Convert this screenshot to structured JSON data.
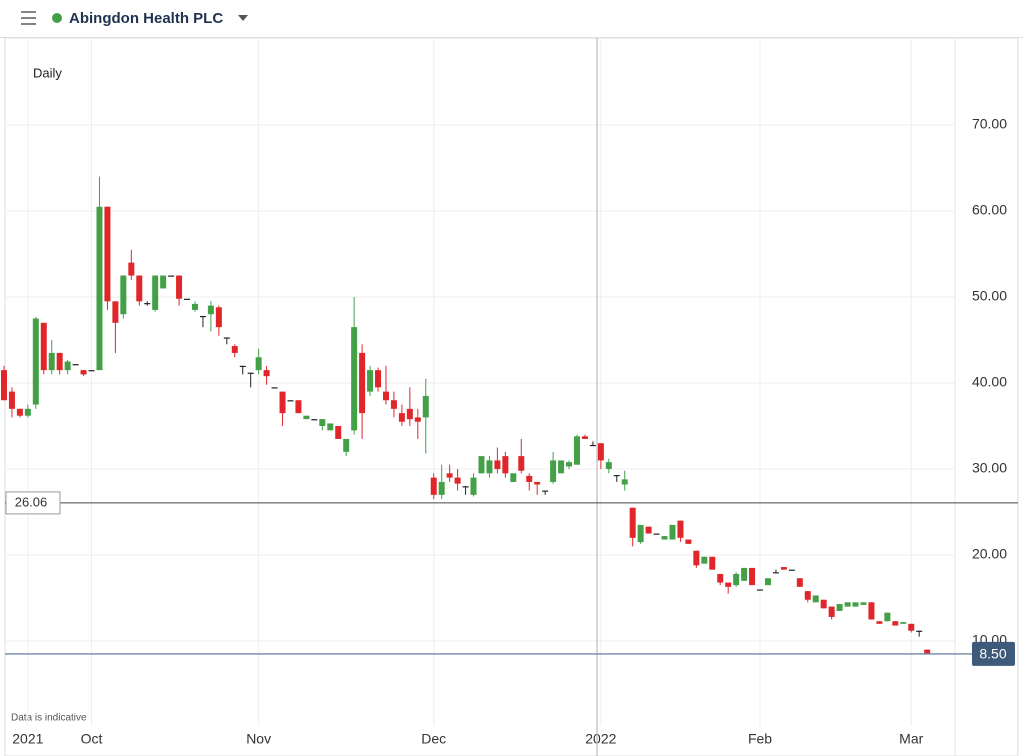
{
  "chart_data": {
    "type": "candlestick",
    "title": "Abingdon Health PLC",
    "interval": "Daily",
    "note": "Data is indicative",
    "ylim": [
      -2.44,
      80.12
    ],
    "yticks": [
      {
        "value": 10,
        "label": "10.00"
      },
      {
        "value": 20,
        "label": "20.00"
      },
      {
        "value": 30,
        "label": "30.00"
      },
      {
        "value": 40,
        "label": "40.00"
      },
      {
        "value": 50,
        "label": "50.00"
      },
      {
        "value": 60,
        "label": "60.00"
      },
      {
        "value": 70,
        "label": "70.00"
      }
    ],
    "xlim": [
      -0.5,
      119.5
    ],
    "xticks": [
      {
        "value": 3,
        "label": "2021"
      },
      {
        "value": 11,
        "label": "Oct"
      },
      {
        "value": 32,
        "label": "Nov"
      },
      {
        "value": 54,
        "label": "Dec"
      },
      {
        "value": 75,
        "label": "2022"
      },
      {
        "value": 95,
        "label": "Feb"
      },
      {
        "value": 114,
        "label": "Mar"
      }
    ],
    "reference_line": 26.06,
    "last_price": {
      "value": 8.5,
      "label": "8.50"
    },
    "up_color": "#43a047",
    "down_color": "#e0262b",
    "open": [
      41.5,
      39,
      37,
      36.2,
      37.5,
      47,
      41.5,
      43.5,
      41.5,
      42.2,
      41.5,
      41.5,
      41.5,
      60.5,
      49.5,
      48,
      54,
      52.5,
      49.3,
      48.5,
      51,
      52.5,
      52.5,
      49.8,
      48.5,
      47.8,
      48,
      48.8,
      45.3,
      44.3,
      42,
      41.2,
      41.5,
      41.5,
      39.5,
      39,
      38,
      38,
      35.8,
      35.8,
      35,
      34.5,
      35,
      32,
      34.5,
      43.5,
      39,
      41.5,
      39,
      38,
      36.5,
      37,
      36,
      36,
      29,
      27,
      29.5,
      29,
      28,
      27,
      29.5,
      29.5,
      31,
      31.5,
      28.5,
      31.5,
      29.2,
      28.5,
      27.5,
      28.5,
      29.5,
      30.3,
      30.5,
      33.8,
      32.8,
      33,
      30,
      29.3,
      28.2,
      25.5,
      21.5,
      23.3,
      22.5,
      21.8,
      21.8,
      24,
      21.8,
      20.5,
      19,
      19.8,
      17.8,
      16.8,
      16.5,
      17,
      18.5,
      16,
      16.5,
      18,
      18.6,
      18.3,
      17.3,
      15.8,
      14.5,
      14.8,
      14,
      13.5,
      14,
      14,
      14.2,
      14.5,
      12.3,
      12.3,
      12.3,
      12,
      12,
      11.2,
      9
    ],
    "high": [
      42,
      39.5,
      37,
      37.5,
      47.7,
      47,
      45,
      43.5,
      42.7,
      42.2,
      41.5,
      41.5,
      64,
      60.5,
      49.5,
      52.5,
      55.5,
      52.5,
      49.5,
      52.5,
      52.5,
      52.5,
      52.5,
      49.8,
      49.5,
      47.8,
      49.5,
      49,
      45.3,
      44.5,
      42,
      41.2,
      44,
      42,
      39.5,
      39,
      38,
      38,
      36.2,
      35.8,
      35.8,
      35.3,
      35,
      33.5,
      50,
      44.5,
      42,
      41.8,
      42,
      39,
      37.5,
      39.5,
      37,
      40.5,
      29.5,
      30.5,
      30.5,
      30,
      28,
      29.5,
      31.5,
      31.5,
      32.5,
      32,
      29.5,
      33.5,
      29.5,
      28.5,
      27.5,
      32,
      31,
      31,
      34,
      34,
      33.2,
      33,
      31.2,
      29.3,
      29.8,
      25.5,
      23.5,
      23.3,
      22.5,
      22.2,
      23.5,
      24,
      21.8,
      20.5,
      19.8,
      19.8,
      17.8,
      16.8,
      18,
      18.5,
      18.5,
      16,
      17.3,
      18.3,
      18.6,
      18.3,
      17.3,
      15.8,
      15.3,
      14.8,
      14,
      14.3,
      14.5,
      14.5,
      14.5,
      14.5,
      12.3,
      13.3,
      12.3,
      12.2,
      12,
      11.2,
      9
    ],
    "low": [
      38,
      36,
      36,
      36,
      37,
      41,
      41,
      41,
      41,
      42.2,
      40.8,
      41.5,
      41.5,
      48.5,
      43.5,
      47.5,
      52,
      49,
      49,
      48.3,
      51,
      52.5,
      49,
      49.8,
      48.3,
      46.5,
      46,
      45.5,
      44.5,
      43,
      41,
      39.5,
      41,
      39.8,
      39.5,
      35,
      38,
      36.5,
      35.8,
      35.8,
      34.5,
      34.5,
      33.5,
      31.5,
      34,
      33.5,
      38.5,
      39,
      37.5,
      36,
      35,
      35,
      33.5,
      31.8,
      26.5,
      26.5,
      28.5,
      27.5,
      27,
      26.8,
      29.5,
      29,
      29.5,
      29,
      28.5,
      29.5,
      27.5,
      27,
      27,
      28.3,
      29.5,
      30,
      30.5,
      33.5,
      32.8,
      30,
      29.5,
      28.5,
      27.5,
      21,
      21.3,
      22.5,
      22.5,
      21.8,
      21.8,
      21.5,
      21.3,
      18.5,
      19,
      18.3,
      16.5,
      15.5,
      16.3,
      17,
      16.5,
      16,
      16.5,
      18,
      18.3,
      18.3,
      16.3,
      14.5,
      14.5,
      13.8,
      12.5,
      13.5,
      14,
      14,
      14.2,
      12.5,
      12,
      12.3,
      11.8,
      12,
      11,
      10.5,
      8.5
    ],
    "close": [
      38,
      37,
      36.2,
      37,
      47.5,
      41.5,
      43.5,
      41.5,
      42.5,
      42.2,
      41,
      41.5,
      60.5,
      49.5,
      47,
      52.5,
      52.5,
      49.5,
      49.3,
      52.5,
      52.5,
      52.5,
      49.8,
      49.8,
      49.2,
      47.8,
      49,
      46.5,
      45.3,
      43.5,
      42,
      41.2,
      43,
      40.8,
      39.5,
      36.5,
      38,
      36.5,
      36.2,
      35.8,
      35.8,
      35.3,
      33.5,
      33.5,
      46.5,
      36.5,
      41.5,
      39.5,
      38,
      37,
      35.5,
      35.8,
      35.5,
      38.5,
      27,
      28.5,
      29,
      28.3,
      28,
      29,
      31.5,
      31,
      30,
      29.5,
      29.5,
      29.8,
      28.5,
      28.2,
      27.5,
      31,
      31,
      30.8,
      33.8,
      33.5,
      32.8,
      31,
      30.8,
      29.3,
      28.8,
      22,
      23.5,
      22.5,
      22.5,
      22.2,
      23.5,
      22,
      21.3,
      18.8,
      19.8,
      18.3,
      16.8,
      16.3,
      17.8,
      18.5,
      16.5,
      16,
      17.3,
      18,
      18.3,
      18.3,
      16.3,
      14.8,
      15.3,
      13.8,
      12.8,
      14.3,
      14.5,
      14.5,
      14.5,
      12.5,
      12,
      13.3,
      11.8,
      12.2,
      11.2,
      11.2,
      8.5
    ]
  }
}
